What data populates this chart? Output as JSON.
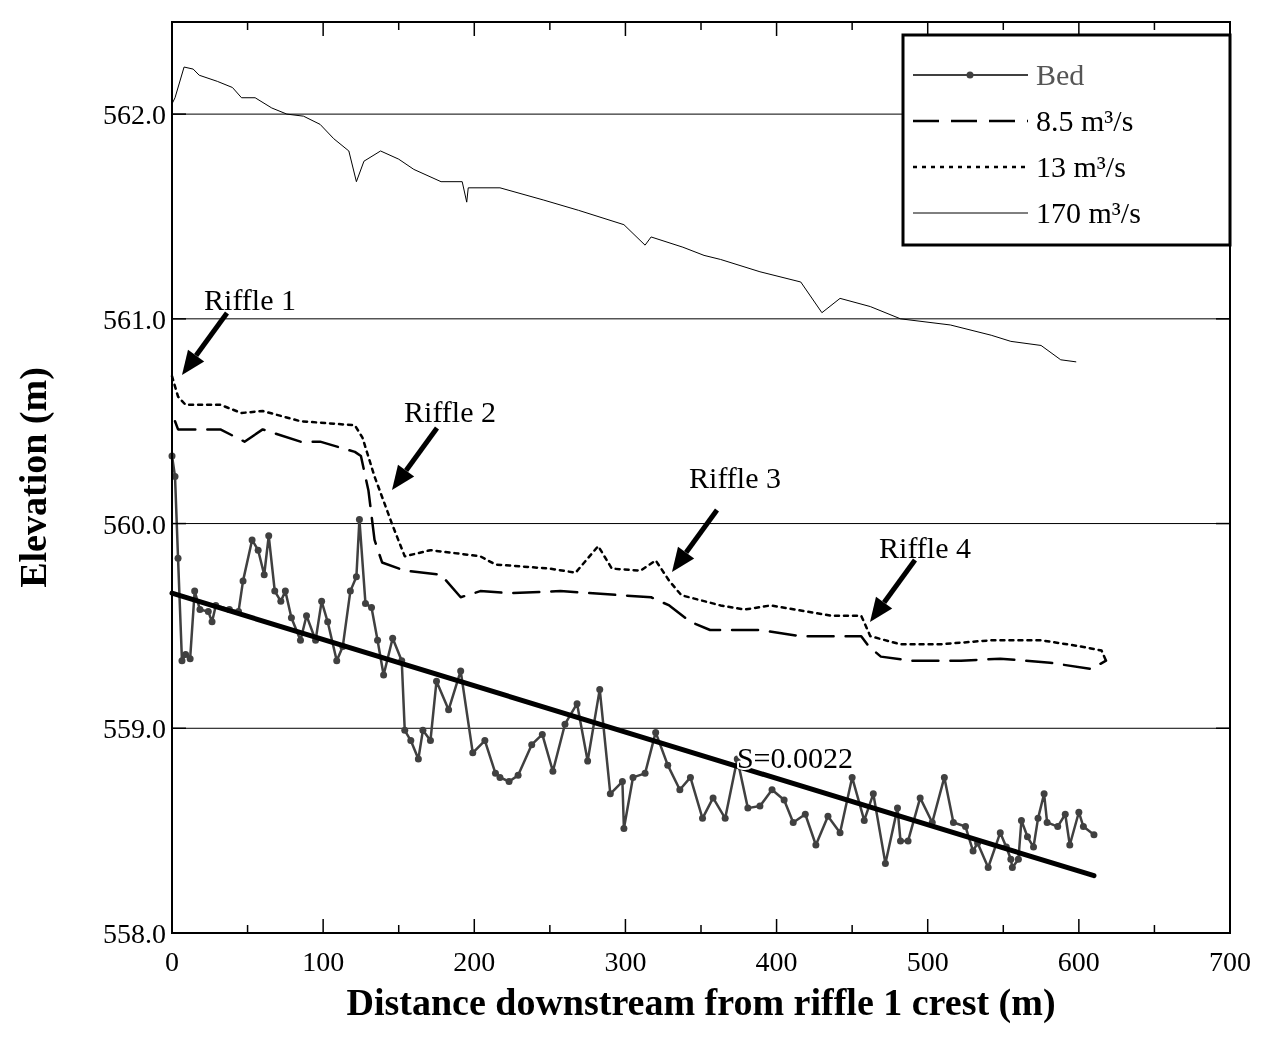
{
  "chart_data": {
    "type": "line",
    "xlabel": "Distance downstream from riffle 1 crest (m)",
    "ylabel": "Elevation (m)",
    "xlim": [
      0,
      700
    ],
    "ylim": [
      558,
      562.45
    ],
    "xticks": [
      0,
      {
        "value": 50,
        "label": null
      },
      100,
      {
        "value": 150,
        "label": null
      },
      200,
      {
        "value": 250,
        "label": null
      },
      300,
      {
        "value": 350,
        "label": null
      },
      400,
      {
        "value": 450,
        "label": null
      },
      500,
      {
        "value": 550,
        "label": null
      },
      600,
      {
        "value": 650,
        "label": null
      },
      700
    ],
    "yticks": [
      {
        "value": 558,
        "label": "558.0"
      },
      {
        "value": 559,
        "label": "559.0"
      },
      {
        "value": 560,
        "label": "560.0"
      },
      {
        "value": 561,
        "label": "561.0"
      },
      {
        "value": 562,
        "label": "562.0"
      }
    ],
    "grid": "y",
    "legend": "top right",
    "series": [
      {
        "name": "Bed",
        "color": "#404040",
        "marker": "circle",
        "line_style": "solid",
        "x": [
          0,
          2,
          4,
          6.6,
          9,
          12,
          15,
          18.5,
          24,
          26.5,
          29,
          38,
          44,
          47,
          53,
          57,
          61,
          64,
          68,
          72,
          75,
          79,
          85,
          89,
          95,
          99,
          103,
          109,
          113,
          118,
          122,
          124,
          128,
          132,
          136,
          140,
          146,
          152,
          154,
          158,
          163,
          166,
          171,
          175,
          183,
          191,
          199,
          207,
          214,
          217,
          223,
          229,
          238,
          245,
          252,
          260,
          268,
          275,
          283,
          290,
          298,
          299,
          305,
          313,
          320,
          328,
          336,
          343,
          351,
          358,
          366,
          374,
          381,
          389,
          397,
          405,
          411,
          419,
          426,
          434,
          442,
          450,
          458,
          464,
          472,
          480,
          482,
          487,
          495,
          503,
          511,
          517,
          525,
          530,
          533,
          540,
          548,
          552,
          555,
          556,
          560,
          562,
          566,
          570,
          573,
          577,
          579,
          586,
          591,
          594,
          600,
          603,
          610
        ],
        "values": [
          560.33,
          560.23,
          559.83,
          559.33,
          559.36,
          559.34,
          559.67,
          559.58,
          559.57,
          559.52,
          559.6,
          559.58,
          559.57,
          559.72,
          559.92,
          559.87,
          559.75,
          559.94,
          559.67,
          559.62,
          559.67,
          559.54,
          559.43,
          559.55,
          559.43,
          559.62,
          559.52,
          559.33,
          559.4,
          559.67,
          559.74,
          560.02,
          559.61,
          559.59,
          559.43,
          559.26,
          559.44,
          559.33,
          558.99,
          558.94,
          558.85,
          558.99,
          558.94,
          559.23,
          559.09,
          559.28,
          558.88,
          558.94,
          558.78,
          558.76,
          558.74,
          558.77,
          558.92,
          558.97,
          558.79,
          559.02,
          559.12,
          558.84,
          559.19,
          558.68,
          558.74,
          558.51,
          558.76,
          558.78,
          558.98,
          558.82,
          558.7,
          558.76,
          558.56,
          558.66,
          558.56,
          558.85,
          558.61,
          558.62,
          558.7,
          558.65,
          558.54,
          558.58,
          558.43,
          558.57,
          558.49,
          558.76,
          558.55,
          558.68,
          558.34,
          558.61,
          558.45,
          558.45,
          558.66,
          558.54,
          558.76,
          558.54,
          558.52,
          558.4,
          558.44,
          558.32,
          558.49,
          558.42,
          558.36,
          558.32,
          558.36,
          558.55,
          558.47,
          558.42,
          558.56,
          558.68,
          558.54,
          558.52,
          558.58,
          558.43,
          558.59,
          558.52,
          558.48
        ]
      },
      {
        "name": "8.5 m³/s",
        "color": "#000000",
        "marker": "none",
        "line_style": "dashed",
        "x": [
          2,
          4,
          32,
          48,
          60,
          85,
          98,
          121,
          125,
          130,
          134,
          139,
          154,
          178,
          191,
          204,
          224,
          257,
          317,
          329,
          343,
          356,
          389,
          416,
          456,
          461,
          469,
          489,
          522,
          548,
          581,
          608,
          618
        ],
        "values": [
          560.5,
          560.46,
          560.46,
          560.4,
          560.46,
          560.4,
          560.4,
          560.35,
          560.33,
          560.16,
          559.92,
          559.81,
          559.77,
          559.75,
          559.64,
          559.67,
          559.66,
          559.67,
          559.64,
          559.6,
          559.52,
          559.48,
          559.48,
          559.45,
          559.45,
          559.4,
          559.35,
          559.33,
          559.33,
          559.34,
          559.32,
          559.29,
          559.33
        ]
      },
      {
        "name": "13 m³/s",
        "color": "#000000",
        "marker": "none",
        "line_style": "dotted",
        "x": [
          0,
          4,
          9,
          32,
          46,
          60,
          85,
          121,
          126,
          134,
          146,
          154,
          171,
          204,
          214,
          250,
          267,
          282,
          291,
          310,
          320,
          329,
          337,
          363,
          379,
          396,
          436,
          456,
          462,
          482,
          508,
          542,
          575,
          601,
          615,
          618
        ],
        "values": [
          560.72,
          560.62,
          560.58,
          560.58,
          560.54,
          560.55,
          560.5,
          560.48,
          560.42,
          560.23,
          559.99,
          559.84,
          559.87,
          559.84,
          559.8,
          559.78,
          559.76,
          559.89,
          559.78,
          559.77,
          559.82,
          559.72,
          559.65,
          559.6,
          559.58,
          559.6,
          559.55,
          559.55,
          559.45,
          559.41,
          559.41,
          559.43,
          559.43,
          559.4,
          559.38,
          559.33
        ]
      },
      {
        "name": "170 m³/s",
        "color": "#000000",
        "marker": "none",
        "line_style": "solid",
        "x": [
          0,
          2,
          8,
          14,
          18,
          30,
          40,
          46,
          55,
          66,
          76,
          87,
          98,
          107,
          117,
          122,
          127,
          138,
          150,
          160,
          178,
          192,
          195,
          196,
          217,
          246,
          269,
          299,
          313,
          317,
          338,
          352,
          363,
          389,
          416,
          430,
          442,
          462,
          482,
          515,
          542,
          555,
          575,
          588,
          598
        ],
        "values": [
          562.05,
          562.08,
          562.23,
          562.22,
          562.19,
          562.16,
          562.13,
          562.08,
          562.08,
          562.03,
          562.0,
          561.99,
          561.95,
          561.88,
          561.82,
          561.67,
          561.77,
          561.82,
          561.78,
          561.73,
          561.67,
          561.67,
          561.57,
          561.64,
          561.64,
          561.58,
          561.53,
          561.46,
          561.36,
          561.4,
          561.35,
          561.31,
          561.29,
          561.23,
          561.18,
          561.03,
          561.1,
          561.06,
          561.0,
          560.97,
          560.92,
          560.89,
          560.87,
          560.8,
          560.79
        ]
      },
      {
        "type": "line",
        "color": "#000000",
        "marker": "none",
        "line_style": "solid",
        "x": [
          0,
          610
        ],
        "values": [
          559.66,
          558.28
        ]
      }
    ],
    "annotations": [
      "Riffle 1",
      "Riffle 2",
      "Riffle 3",
      "Riffle 4",
      "S=0.0022"
    ]
  }
}
